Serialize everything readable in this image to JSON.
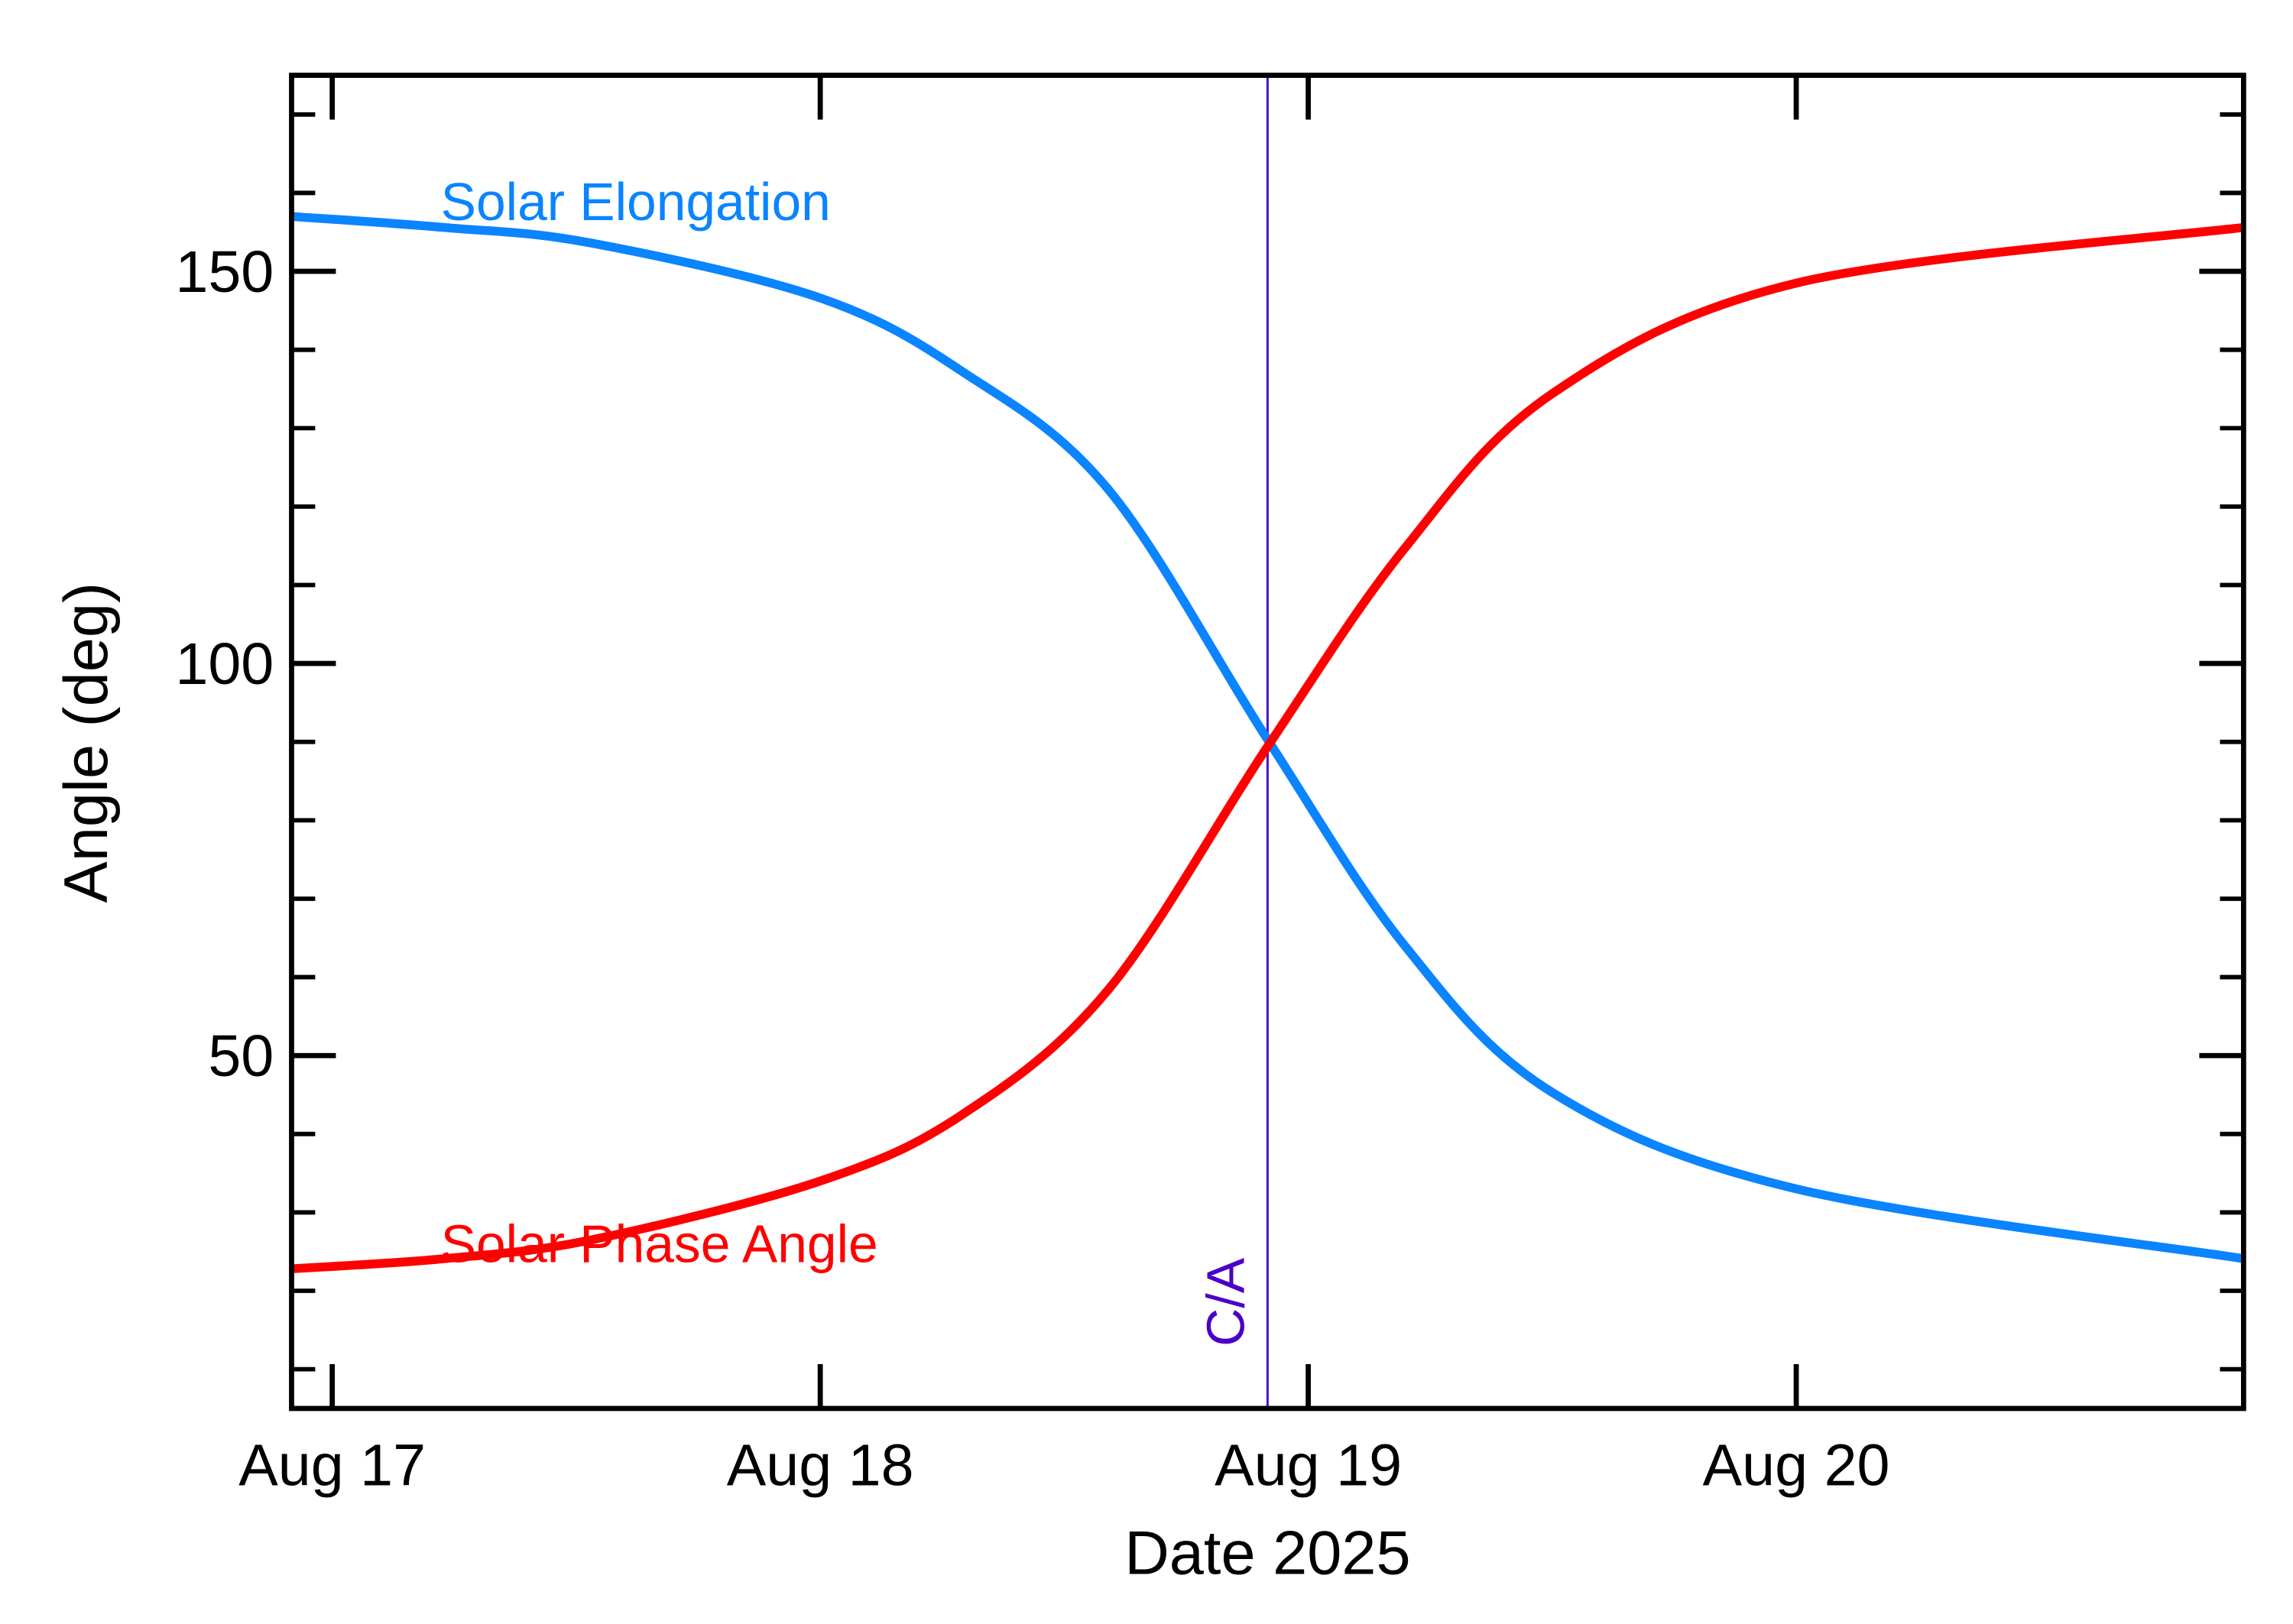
{
  "chart_data": {
    "type": "line",
    "title": "",
    "xlabel": "Date 2025",
    "ylabel": "Angle (deg)",
    "xlim": [
      "2025-08-16T22:00",
      "2025-08-20T22:00"
    ],
    "ylim": [
      5,
      175
    ],
    "x_ticks": [
      {
        "date": "2025-08-17T00:00",
        "label": "Aug 17"
      },
      {
        "date": "2025-08-18T00:00",
        "label": "Aug 18"
      },
      {
        "date": "2025-08-19T00:00",
        "label": "Aug 19"
      },
      {
        "date": "2025-08-20T00:00",
        "label": "Aug 20"
      }
    ],
    "y_ticks": [
      50,
      100,
      150
    ],
    "y_minor_step": 10,
    "grid": false,
    "x": [
      "2025-08-16T22:00",
      "2025-08-17T05:30",
      "2025-08-17T12:45",
      "2025-08-18T00:00",
      "2025-08-18T07:00",
      "2025-08-18T14:10",
      "2025-08-18T22:00",
      "2025-08-19T04:45",
      "2025-08-19T12:00",
      "2025-08-20T00:00",
      "2025-08-20T22:00"
    ],
    "series": [
      {
        "name": "Solar Elongation",
        "color": "#0a84ff",
        "values": [
          157.0,
          155.6,
          153.6,
          146.6,
          137.2,
          122.2,
          90.3,
          64.0,
          45.3,
          33.0,
          24.1
        ]
      },
      {
        "name": "Solar Phase Angle",
        "color": "#ff0000",
        "values": [
          22.8,
          24.1,
          26.5,
          34.0,
          42.5,
          58.4,
          89.4,
          114.7,
          134.4,
          148.5,
          155.6
        ]
      }
    ],
    "annotations": [
      {
        "label": "C/A",
        "date": "2025-08-18T22:00",
        "color": "#4b00c8"
      }
    ]
  }
}
